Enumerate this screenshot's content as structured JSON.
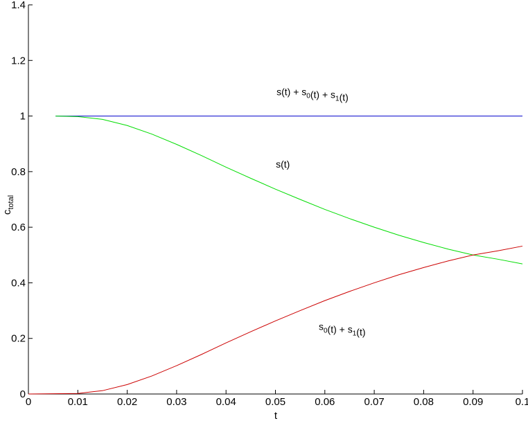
{
  "chart_data": {
    "type": "line",
    "title": "",
    "xlabel": "t",
    "ylabel": {
      "base": "c",
      "sub": "total"
    },
    "xlim": [
      0,
      0.1
    ],
    "ylim": [
      0,
      1.4
    ],
    "grid": false,
    "legend": "none",
    "x_ticks": [
      "0",
      "0.01",
      "0.02",
      "0.03",
      "0.04",
      "0.05",
      "0.06",
      "0.07",
      "0.08",
      "0.09",
      "0.1"
    ],
    "y_ticks": [
      "0",
      "0.2",
      "0.4",
      "0.6",
      "0.8",
      "1",
      "1.2",
      "1.4"
    ],
    "series": [
      {
        "color": "#0000cc",
        "x": [
          0.0055,
          0.1
        ],
        "y": [
          1.0,
          1.0
        ]
      },
      {
        "color": "#00dd00",
        "x": [
          0.0055,
          0.01,
          0.015,
          0.02,
          0.025,
          0.03,
          0.035,
          0.04,
          0.045,
          0.05,
          0.055,
          0.06,
          0.065,
          0.07,
          0.075,
          0.08,
          0.085,
          0.09,
          0.095,
          0.1
        ],
        "y": [
          1.0,
          0.998,
          0.988,
          0.966,
          0.935,
          0.898,
          0.858,
          0.816,
          0.776,
          0.737,
          0.7,
          0.664,
          0.631,
          0.6,
          0.571,
          0.545,
          0.521,
          0.5,
          0.485,
          0.468
        ]
      },
      {
        "color": "#cc0000",
        "x": [
          0,
          0.01,
          0.015,
          0.02,
          0.025,
          0.03,
          0.035,
          0.04,
          0.045,
          0.05,
          0.055,
          0.06,
          0.065,
          0.07,
          0.075,
          0.08,
          0.085,
          0.09,
          0.095,
          0.1
        ],
        "y": [
          0.0,
          0.002,
          0.012,
          0.034,
          0.065,
          0.102,
          0.142,
          0.184,
          0.224,
          0.263,
          0.3,
          0.336,
          0.369,
          0.4,
          0.429,
          0.455,
          0.479,
          0.5,
          0.515,
          0.532
        ]
      }
    ],
    "annotations": [
      {
        "text": [
          [
            "s(t) + s",
            ""
          ],
          [
            "0",
            "sub"
          ],
          [
            "(t) + s",
            ""
          ],
          [
            "1",
            "sub"
          ],
          [
            "(t)",
            ""
          ]
        ],
        "x": 0.0575,
        "y": 1.075
      },
      {
        "text": [
          [
            "s(t)",
            ""
          ]
        ],
        "x": 0.0515,
        "y": 0.815
      },
      {
        "text": [
          [
            "s",
            ""
          ],
          [
            "0",
            "sub"
          ],
          [
            "(t) + s",
            ""
          ],
          [
            "1",
            "sub"
          ],
          [
            "(t)",
            ""
          ]
        ],
        "x": 0.0635,
        "y": 0.23
      }
    ]
  }
}
